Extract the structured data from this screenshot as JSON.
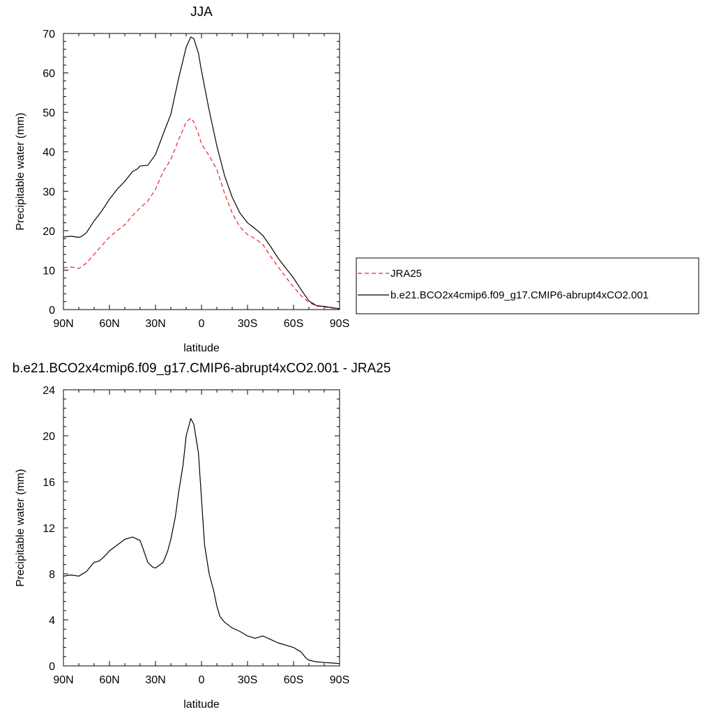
{
  "chart_data": [
    {
      "type": "line",
      "title": "JJA",
      "xlabel": "latitude",
      "ylabel": "Precipitable water (mm)",
      "ylim": [
        0,
        70
      ],
      "xlim": [
        90,
        -90
      ],
      "yticks": [
        0,
        10,
        20,
        30,
        40,
        50,
        60,
        70
      ],
      "xticks": [
        90,
        60,
        30,
        0,
        -30,
        -60,
        -90
      ],
      "xtick_labels": [
        "90N",
        "60N",
        "30N",
        "0",
        "30S",
        "60S",
        "90S"
      ],
      "legend": "right",
      "series": [
        {
          "name": "JRA25",
          "color": "#e8202a",
          "dash": "dashed",
          "x": [
            90,
            85,
            80,
            75,
            70,
            65,
            60,
            55,
            50,
            45,
            40,
            35,
            30,
            25,
            20,
            15,
            10,
            7,
            5,
            2,
            0,
            -5,
            -10,
            -15,
            -20,
            -25,
            -30,
            -35,
            -40,
            -45,
            -50,
            -55,
            -60,
            -65,
            -70,
            -75,
            -80,
            -85,
            -90
          ],
          "values": [
            10.6,
            10.8,
            10.4,
            11.8,
            14.0,
            16.2,
            18.4,
            20.0,
            21.5,
            23.8,
            25.8,
            27.5,
            30.5,
            35.0,
            38.0,
            43.0,
            47.5,
            48.6,
            47.5,
            44.5,
            42.0,
            39.0,
            35.5,
            29.5,
            24.5,
            21.0,
            19.0,
            18.0,
            16.5,
            13.5,
            10.8,
            8.2,
            5.7,
            3.5,
            1.8,
            0.9,
            0.7,
            0.4,
            0.2
          ]
        },
        {
          "name": "b.e21.BCO2x4cmip6.f09_g17.CMIP6-abrupt4xCO2.001",
          "color": "#000000",
          "dash": "solid",
          "x": [
            90,
            85,
            80,
            78,
            75,
            70,
            65,
            60,
            55,
            50,
            45,
            42,
            40,
            35,
            30,
            25,
            20,
            15,
            10,
            7,
            5,
            2,
            0,
            -5,
            -10,
            -15,
            -20,
            -25,
            -30,
            -35,
            -40,
            -45,
            -50,
            -55,
            -60,
            -65,
            -70,
            -75,
            -80,
            -85,
            -90
          ],
          "values": [
            18.4,
            18.6,
            18.3,
            18.6,
            19.5,
            22.5,
            25.0,
            28.0,
            30.5,
            32.5,
            35.0,
            35.6,
            36.4,
            36.6,
            39.3,
            44.5,
            49.5,
            58.5,
            66.5,
            69.1,
            68.7,
            65.0,
            60.5,
            50.5,
            41.5,
            34.0,
            28.5,
            24.5,
            22.0,
            20.5,
            18.8,
            16.0,
            13.0,
            10.5,
            8.0,
            5.0,
            2.2,
            1.0,
            0.8,
            0.5,
            0.2
          ]
        }
      ]
    },
    {
      "type": "line",
      "title": "b.e21.BCO2x4cmip6.f09_g17.CMIP6-abrupt4xCO2.001 - JRA25",
      "xlabel": "latitude",
      "ylabel": "Precipitable water (mm)",
      "ylim": [
        0,
        24
      ],
      "xlim": [
        90,
        -90
      ],
      "yticks": [
        0,
        4,
        8,
        12,
        16,
        20,
        24
      ],
      "xticks": [
        90,
        60,
        30,
        0,
        -30,
        -60,
        -90
      ],
      "xtick_labels": [
        "90N",
        "60N",
        "30N",
        "0",
        "30S",
        "60S",
        "90S"
      ],
      "series": [
        {
          "color": "#000000",
          "dash": "solid",
          "x": [
            90,
            85,
            80,
            75,
            72,
            70,
            67,
            65,
            62,
            60,
            55,
            50,
            45,
            40,
            35,
            32,
            30,
            25,
            22,
            20,
            17,
            15,
            12,
            10,
            7,
            5,
            2,
            0,
            -2,
            -5,
            -8,
            -10,
            -12,
            -15,
            -20,
            -25,
            -30,
            -35,
            -40,
            -45,
            -50,
            -55,
            -60,
            -65,
            -68,
            -70,
            -75,
            -80,
            -85,
            -90
          ],
          "values": [
            7.8,
            7.9,
            7.8,
            8.2,
            8.7,
            9.0,
            9.1,
            9.3,
            9.7,
            10.0,
            10.5,
            11.0,
            11.2,
            10.9,
            9.0,
            8.6,
            8.5,
            9.0,
            10.0,
            11.0,
            13.0,
            15.0,
            17.5,
            20.0,
            21.5,
            21.0,
            18.5,
            14.5,
            10.5,
            8.0,
            6.5,
            5.2,
            4.3,
            3.8,
            3.3,
            3.0,
            2.6,
            2.4,
            2.6,
            2.3,
            2.0,
            1.8,
            1.6,
            1.2,
            0.7,
            0.5,
            0.35,
            0.3,
            0.25,
            0.2
          ]
        }
      ]
    }
  ]
}
